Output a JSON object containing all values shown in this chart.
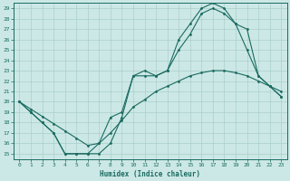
{
  "title": "",
  "xlabel": "Humidex (Indice chaleur)",
  "bg_color": "#cce8e6",
  "line_color": "#1a6b60",
  "grid_color": "#aacfcc",
  "xlim": [
    -0.5,
    23.5
  ],
  "ylim": [
    14.5,
    29.5
  ],
  "xticks": [
    0,
    1,
    2,
    3,
    4,
    5,
    6,
    7,
    8,
    9,
    10,
    11,
    12,
    13,
    14,
    15,
    16,
    17,
    18,
    19,
    20,
    21,
    22,
    23
  ],
  "yticks": [
    15,
    16,
    17,
    18,
    19,
    20,
    21,
    22,
    23,
    24,
    25,
    26,
    27,
    28,
    29
  ],
  "curve1_x": [
    0,
    1,
    2,
    3,
    4,
    5,
    6,
    7,
    8,
    9,
    10,
    11,
    12,
    13,
    14,
    15,
    16,
    17,
    18,
    19,
    20,
    21,
    22,
    23
  ],
  "curve1_y": [
    20.0,
    19.0,
    18.0,
    17.0,
    15.0,
    15.0,
    15.0,
    16.0,
    18.5,
    19.0,
    22.5,
    23.0,
    22.5,
    23.0,
    26.0,
    27.5,
    29.0,
    29.5,
    29.0,
    27.5,
    27.0,
    22.5,
    21.5,
    20.5
  ],
  "curve2_x": [
    0,
    1,
    2,
    3,
    4,
    5,
    6,
    7,
    8,
    9,
    10,
    11,
    12,
    13,
    14,
    15,
    16,
    17,
    18,
    19,
    20,
    21,
    22,
    23
  ],
  "curve2_y": [
    20.0,
    19.0,
    18.0,
    17.0,
    15.0,
    15.0,
    15.0,
    15.0,
    16.0,
    18.5,
    22.5,
    22.5,
    22.5,
    23.0,
    25.0,
    26.5,
    28.5,
    29.0,
    28.5,
    27.5,
    25.0,
    22.5,
    21.5,
    20.5
  ],
  "curve3_x": [
    0,
    1,
    2,
    3,
    4,
    5,
    6,
    7,
    8,
    9,
    10,
    11,
    12,
    13,
    14,
    15,
    16,
    17,
    18,
    19,
    20,
    21,
    22,
    23
  ],
  "curve3_y": [
    20.0,
    19.3,
    18.6,
    17.9,
    17.2,
    16.5,
    15.8,
    16.0,
    17.0,
    18.2,
    19.5,
    20.2,
    21.0,
    21.5,
    22.0,
    22.5,
    22.8,
    23.0,
    23.0,
    22.8,
    22.5,
    22.0,
    21.5,
    21.0
  ],
  "xlabel_fontsize": 5.5,
  "tick_fontsize": 4.5
}
